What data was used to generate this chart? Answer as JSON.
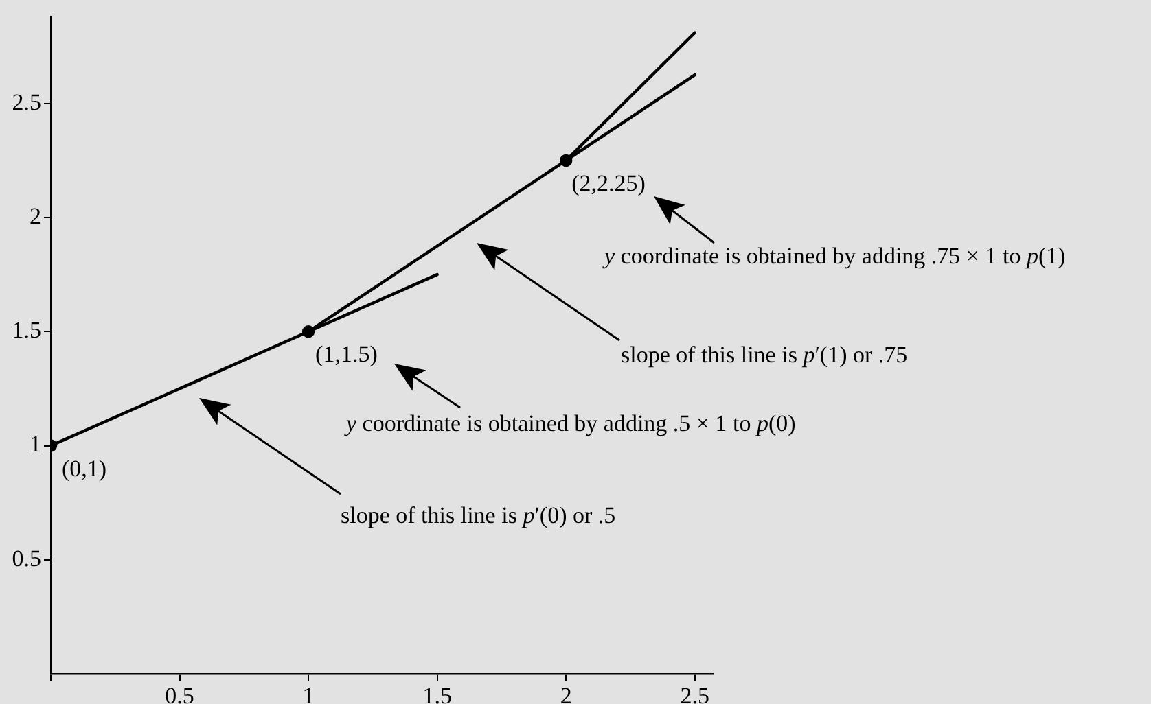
{
  "chart_data": {
    "type": "line",
    "xlim": [
      0,
      2.57
    ],
    "xticks": [
      {
        "value": 0,
        "label": null
      },
      0.5,
      1,
      1.5,
      2,
      2.5
    ],
    "ylim": [
      0,
      2.88
    ],
    "yticks": [
      0.5,
      1,
      1.5,
      2,
      2.5
    ],
    "grid": false,
    "legend": false,
    "line_style": "solid",
    "series": [
      {
        "color": "#000000",
        "x": [
          0,
          1,
          2
        ],
        "values": [
          1,
          1.5,
          2.25
        ],
        "marker": "circle"
      },
      {
        "color": "#000000",
        "x": [
          1,
          1.5
        ],
        "values": [
          1.5,
          1.75
        ],
        "marker": "none"
      },
      {
        "color": "#000000",
        "x": [
          2,
          2.5
        ],
        "values": [
          2.25,
          2.625
        ],
        "marker": "none"
      },
      {
        "color": "#000000",
        "x": [
          2,
          2.5
        ],
        "values": [
          2.25,
          2.81
        ],
        "marker": "none"
      }
    ],
    "annotations": [
      {
        "text": "(0,1)",
        "x": 0,
        "y": 1
      },
      {
        "text": "(1,1.5)",
        "x": 1,
        "y": 1.5
      },
      {
        "text": "(2,2.25)",
        "x": 2,
        "y": 2.25
      },
      "slope of this line is p′(0) or .5",
      "y coordinate is obtained by adding .5 × 1 to p(0)",
      "slope of this line is p′(1) or .75",
      "y coordinate is obtained by adding .75 × 1 to p(1)"
    ]
  }
}
